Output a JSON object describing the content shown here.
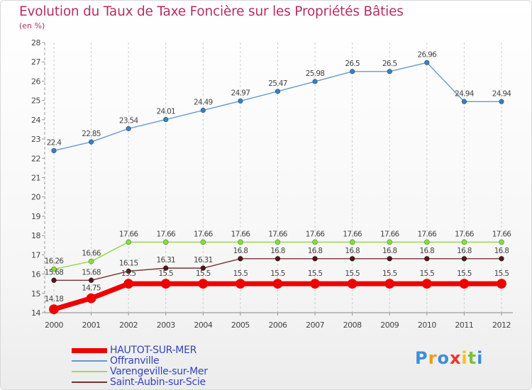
{
  "title": "Evolution du Taux de Taxe Foncière sur les Propriétés Bâties",
  "unit_label": "(en %)",
  "logo_text": "Proxiti",
  "chart_data": {
    "type": "line",
    "title": "Evolution du Taux de Taxe Foncière sur les Propriétés Bâties",
    "ylabel": "(en %)",
    "xlabel": "",
    "x": [
      "2000",
      "2001",
      "2002",
      "2003",
      "2004",
      "2005",
      "2006",
      "2007",
      "2008",
      "2009",
      "2010",
      "2011",
      "2012"
    ],
    "ylim": [
      14,
      28
    ],
    "yticks": [
      "14",
      "15",
      "16",
      "17",
      "18",
      "19",
      "20",
      "21",
      "22",
      "23",
      "24",
      "25",
      "26",
      "27",
      "28"
    ],
    "grid": "vertical dashed",
    "legend_position": "bottom-left",
    "series": [
      {
        "name": "HAUTOT-SUR-MER",
        "color": "#ee0000",
        "values": [
          14.18,
          14.75,
          15.5,
          15.5,
          15.5,
          15.5,
          15.5,
          15.5,
          15.5,
          15.5,
          15.5,
          15.5,
          15.5
        ],
        "labels": [
          "14.18",
          "14.75",
          "15.5",
          "15.5",
          "15.5",
          "15.5",
          "15.5",
          "15.5",
          "15.5",
          "15.5",
          "15.5",
          "15.5",
          "15.5"
        ]
      },
      {
        "name": "Offranville",
        "color": "#6699cc",
        "values": [
          22.4,
          22.85,
          23.54,
          24.01,
          24.49,
          24.97,
          25.47,
          25.98,
          26.5,
          26.5,
          26.96,
          24.94,
          24.94
        ],
        "labels": [
          "22.4",
          "22.85",
          "23.54",
          "24.01",
          "24.49",
          "24.97",
          "25.47",
          "25.98",
          "26.5",
          "26.5",
          "26.96",
          "24.94",
          "24.94"
        ]
      },
      {
        "name": "Varengeville-sur-Mer",
        "color": "#99dd55",
        "values": [
          16.26,
          16.66,
          17.66,
          17.66,
          17.66,
          17.66,
          17.66,
          17.66,
          17.66,
          17.66,
          17.66,
          17.66,
          17.66
        ],
        "labels": [
          "16.26",
          "16.66",
          "17.66",
          "17.66",
          "17.66",
          "17.66",
          "17.66",
          "17.66",
          "17.66",
          "17.66",
          "17.66",
          "17.66",
          "17.66"
        ]
      },
      {
        "name": "Saint-Aubin-sur-Scie",
        "color": "#773333",
        "values": [
          15.68,
          15.68,
          16.15,
          16.31,
          16.31,
          16.8,
          16.8,
          16.8,
          16.8,
          16.8,
          16.8,
          16.8,
          16.8
        ],
        "labels": [
          "15.68",
          "15.68",
          "16.15",
          "16.31",
          "16.31",
          "16.8",
          "16.8",
          "16.8",
          "16.8",
          "16.8",
          "16.8",
          "16.8",
          "16.8"
        ]
      }
    ]
  }
}
